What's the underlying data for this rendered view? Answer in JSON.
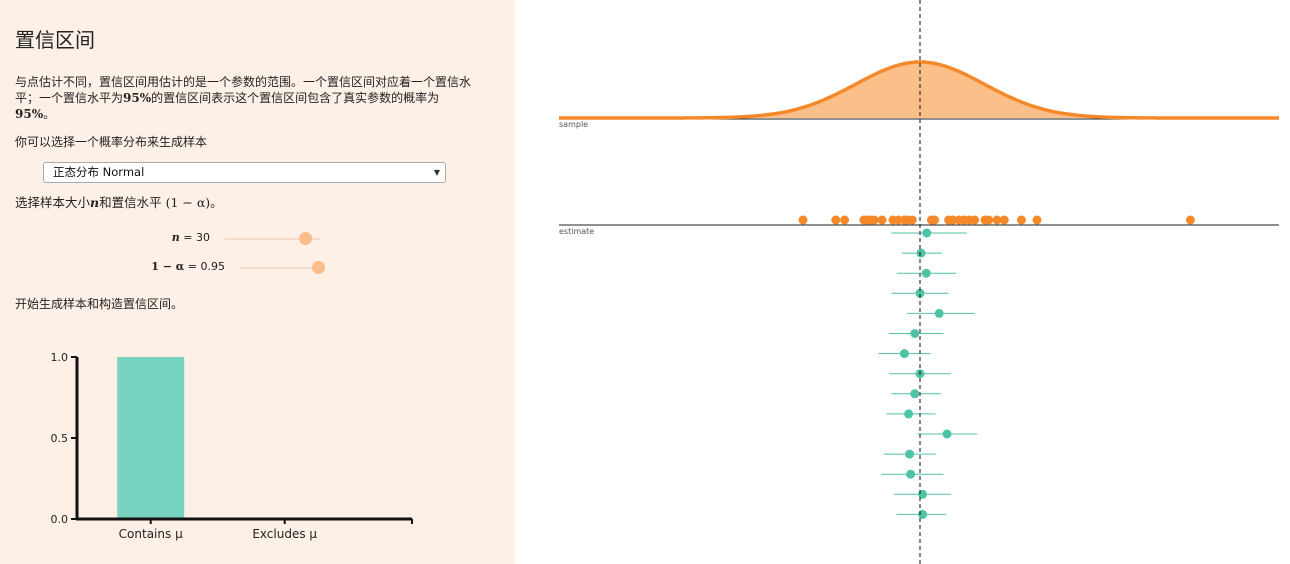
{
  "title": "置信区间",
  "intro": {
    "line1": "与点估计不同，置信区间用估计的是一个参数的范围。一个置信区间对应着一个置信水",
    "line2_a": "平；一个置信水平为",
    "percent": "95%",
    "line2_b": "的置信区间表示这个置信区间包含了真实参数的概率为",
    "line3_end": "。"
  },
  "choose_dist": "你可以选择一个概率分布来生成样本",
  "dist_select": {
    "value": "正态分布 Normal"
  },
  "choose_params": {
    "text": "选择样本大小",
    "n": "n",
    "mid": "和置信水平 ",
    "expr": "(1 − α)",
    "end": "。"
  },
  "sliders": {
    "n": {
      "symbol": "n",
      "display": "= 30",
      "value": 30,
      "fraction": 0.85
    },
    "alpha": {
      "symbol": "1 − α",
      "display": "= 0.95",
      "value": 0.95,
      "fraction": 0.92
    }
  },
  "start_text": "开始生成样本和构造置信区间。",
  "colors": {
    "panel_bg": "#fdf0e7",
    "orange": "#f5892a",
    "orange_fill": "#fbc08a",
    "teal": "#4fc3a6",
    "bar_teal": "#78d3c0"
  },
  "chart_data": {
    "type": "bar",
    "categories": [
      "Contains μ",
      "Excludes μ"
    ],
    "values": [
      1.0,
      0.0
    ],
    "yticks": [
      "0.0",
      "0.5",
      "1.0"
    ],
    "ylim": [
      0,
      1
    ]
  },
  "plot": {
    "sample_label": "sample",
    "estimate_label": "estimate",
    "samples": [
      -2.25,
      -1.62,
      -1.45,
      -1.08,
      -1.02,
      -0.95,
      -0.88,
      -0.73,
      -0.52,
      -0.42,
      -0.3,
      -0.25,
      -0.15,
      0.22,
      0.28,
      0.55,
      0.63,
      0.75,
      0.85,
      0.95,
      1.05,
      1.25,
      1.32,
      1.48,
      1.62,
      1.95,
      2.25,
      5.2
    ],
    "intervals": [
      {
        "mean": 0.13,
        "lo": -0.55,
        "hi": 0.9
      },
      {
        "mean": 0.02,
        "lo": -0.35,
        "hi": 0.42
      },
      {
        "mean": 0.12,
        "lo": -0.45,
        "hi": 0.7
      },
      {
        "mean": 0.0,
        "lo": -0.55,
        "hi": 0.55
      },
      {
        "mean": 0.37,
        "lo": -0.25,
        "hi": 1.05
      },
      {
        "mean": -0.1,
        "lo": -0.6,
        "hi": 0.45
      },
      {
        "mean": -0.3,
        "lo": -0.8,
        "hi": 0.2
      },
      {
        "mean": 0.0,
        "lo": -0.6,
        "hi": 0.6
      },
      {
        "mean": -0.1,
        "lo": -0.55,
        "hi": 0.4
      },
      {
        "mean": -0.22,
        "lo": -0.65,
        "hi": 0.3
      },
      {
        "mean": 0.52,
        "lo": -0.05,
        "hi": 1.1
      },
      {
        "mean": -0.2,
        "lo": -0.7,
        "hi": 0.3
      },
      {
        "mean": -0.18,
        "lo": -0.75,
        "hi": 0.45
      },
      {
        "mean": 0.05,
        "lo": -0.5,
        "hi": 0.6
      },
      {
        "mean": 0.05,
        "lo": -0.45,
        "hi": 0.5
      }
    ]
  }
}
